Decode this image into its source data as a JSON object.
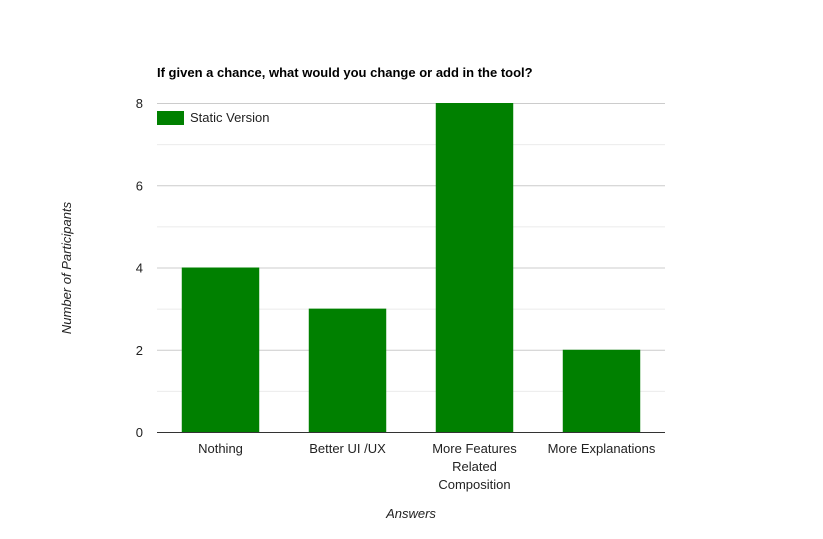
{
  "chart_data": {
    "type": "bar",
    "title": "If given a chance, what would you change or add in the tool?",
    "xlabel": "Answers",
    "ylabel": "Number of Participants",
    "categories": [
      [
        "Nothing"
      ],
      [
        "Better UI /UX"
      ],
      [
        "More Features",
        "Related",
        "Composition"
      ],
      [
        "More Explanations"
      ]
    ],
    "series": [
      {
        "name": "Static Version",
        "values": [
          4,
          3,
          8,
          2
        ],
        "color": "#008000"
      }
    ],
    "ylim": [
      0,
      8
    ],
    "yticks": [
      0,
      2,
      4,
      6,
      8
    ],
    "minor_gridlines": true,
    "legend_position": "top-left"
  },
  "colors": {
    "bar": "#008000",
    "major_grid": "#cccccc",
    "minor_grid": "#ebebeb",
    "axis": "#333333",
    "text": "#222222",
    "title": "#000000"
  }
}
